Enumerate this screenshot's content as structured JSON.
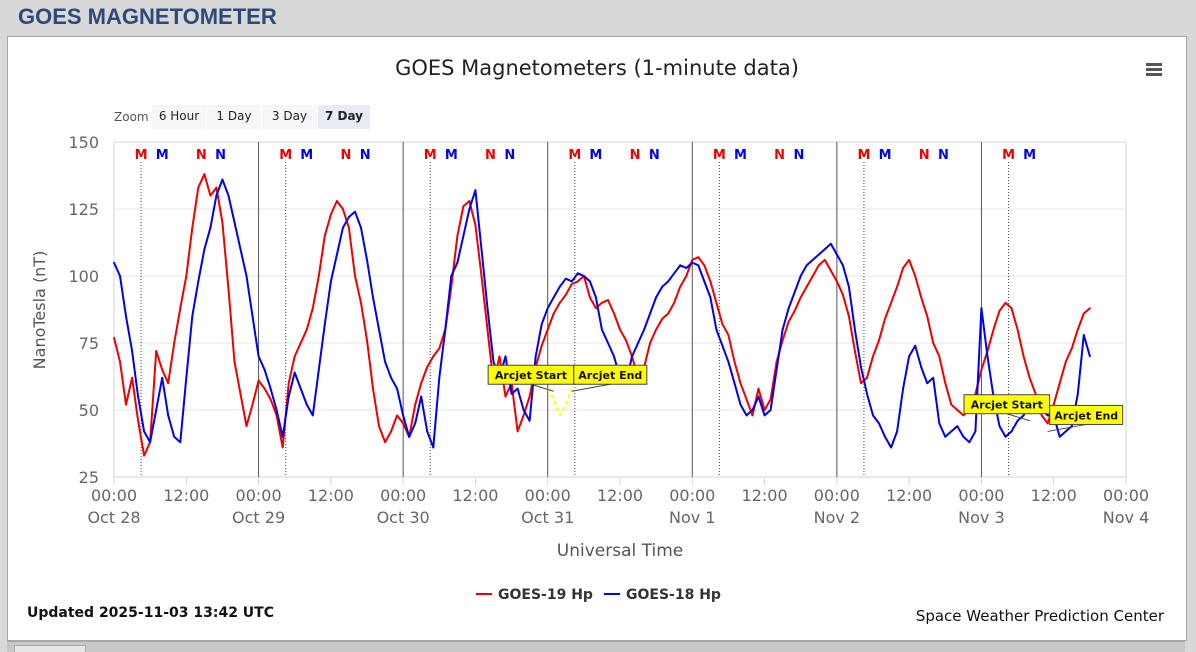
{
  "header": {
    "title": "GOES MAGNETOMETER"
  },
  "chart_data": {
    "type": "line",
    "title": "GOES Magnetometers (1-minute data)",
    "xlabel": "Universal Time",
    "ylabel": "NanoTesla (nT)",
    "ylim": [
      25,
      150
    ],
    "y_ticks": [
      25,
      50,
      75,
      100,
      125,
      150
    ],
    "x_range_hours": [
      0,
      168
    ],
    "x_ticks": [
      {
        "time": "00:00",
        "date": "Oct 28"
      },
      {
        "time": "12:00",
        "date": ""
      },
      {
        "time": "00:00",
        "date": "Oct 29"
      },
      {
        "time": "12:00",
        "date": ""
      },
      {
        "time": "00:00",
        "date": "Oct 30"
      },
      {
        "time": "12:00",
        "date": ""
      },
      {
        "time": "00:00",
        "date": "Oct 31"
      },
      {
        "time": "12:00",
        "date": ""
      },
      {
        "time": "00:00",
        "date": "Nov 1"
      },
      {
        "time": "12:00",
        "date": ""
      },
      {
        "time": "00:00",
        "date": "Nov 2"
      },
      {
        "time": "12:00",
        "date": ""
      },
      {
        "time": "00:00",
        "date": "Nov 3"
      },
      {
        "time": "12:00",
        "date": ""
      },
      {
        "time": "00:00",
        "date": "Nov 4"
      }
    ],
    "grid": "horizontal",
    "legend_position": "bottom-center",
    "series": [
      {
        "name": "GOES-19 Hp",
        "color": "#ee0000",
        "x": [
          0,
          1,
          2,
          3,
          4,
          5,
          6,
          7,
          8,
          9,
          10,
          11,
          12,
          13,
          14,
          15,
          16,
          17,
          18,
          19,
          20,
          21,
          22,
          23,
          24,
          25,
          26,
          27,
          28,
          29,
          30,
          31,
          32,
          33,
          34,
          35,
          36,
          37,
          38,
          39,
          40,
          41,
          42,
          43,
          44,
          45,
          46,
          47,
          48,
          49,
          50,
          51,
          52,
          53,
          54,
          55,
          56,
          57,
          58,
          59,
          60,
          61,
          62,
          63,
          64,
          65,
          66,
          67,
          68,
          69,
          70,
          71,
          72,
          73,
          74,
          75,
          76,
          77,
          78,
          79,
          80,
          81,
          82,
          83,
          84,
          85,
          86,
          87,
          88,
          89,
          90,
          91,
          92,
          93,
          94,
          95,
          96,
          97,
          98,
          99,
          100,
          101,
          102,
          103,
          104,
          105,
          106,
          107,
          108,
          109,
          110,
          111,
          112,
          113,
          114,
          115,
          116,
          117,
          118,
          119,
          120,
          121,
          122,
          123,
          124,
          125,
          126,
          127,
          128,
          129,
          130,
          131,
          132,
          133,
          134,
          135,
          136,
          137,
          138,
          139,
          140,
          141,
          142,
          143,
          144,
          145,
          146,
          147,
          148,
          149,
          150,
          151,
          152,
          153,
          154,
          155,
          156,
          157,
          158,
          159,
          160,
          161,
          162
        ],
        "values": [
          77,
          68,
          52,
          62,
          46,
          33,
          38,
          72,
          65,
          60,
          75,
          88,
          100,
          118,
          133,
          138,
          130,
          133,
          120,
          95,
          68,
          56,
          44,
          52,
          61,
          58,
          54,
          48,
          36,
          60,
          70,
          75,
          80,
          88,
          100,
          115,
          123,
          128,
          125,
          118,
          100,
          90,
          76,
          58,
          44,
          38,
          42,
          48,
          45,
          40,
          52,
          60,
          66,
          70,
          73,
          80,
          96,
          115,
          126,
          128,
          119,
          100,
          80,
          60,
          70,
          55,
          60,
          42,
          48,
          55,
          66,
          74,
          80,
          86,
          90,
          93,
          97,
          98,
          100,
          92,
          88,
          90,
          91,
          86,
          80,
          76,
          70,
          62,
          66,
          75,
          80,
          84,
          86,
          90,
          96,
          100,
          106,
          107,
          104,
          98,
          90,
          82,
          78,
          68,
          60,
          54,
          48,
          58,
          50,
          54,
          68,
          76,
          83,
          87,
          92,
          96,
          100,
          104,
          106,
          102,
          98,
          93,
          85,
          72,
          60,
          62,
          70,
          76,
          84,
          90,
          96,
          103,
          106,
          100,
          92,
          85,
          75,
          70,
          60,
          52,
          50,
          48,
          50,
          56,
          65,
          72,
          80,
          87,
          90,
          88,
          80,
          70,
          62,
          56,
          48,
          45,
          52,
          60,
          68,
          73,
          80,
          86,
          88
        ]
      },
      {
        "name": "GOES-18 Hp",
        "color": "#0000ee",
        "x": [
          0,
          1,
          2,
          3,
          4,
          5,
          6,
          7,
          8,
          9,
          10,
          11,
          12,
          13,
          14,
          15,
          16,
          17,
          18,
          19,
          20,
          21,
          22,
          23,
          24,
          25,
          26,
          27,
          28,
          29,
          30,
          31,
          32,
          33,
          34,
          35,
          36,
          37,
          38,
          39,
          40,
          41,
          42,
          43,
          44,
          45,
          46,
          47,
          48,
          49,
          50,
          51,
          52,
          53,
          54,
          55,
          56,
          57,
          58,
          59,
          60,
          61,
          62,
          63,
          64,
          65,
          66,
          67,
          68,
          69,
          70,
          71,
          72,
          73,
          74,
          75,
          76,
          77,
          78,
          79,
          80,
          81,
          82,
          83,
          84,
          85,
          86,
          87,
          88,
          89,
          90,
          91,
          92,
          93,
          94,
          95,
          96,
          97,
          98,
          99,
          100,
          101,
          102,
          103,
          104,
          105,
          106,
          107,
          108,
          109,
          110,
          111,
          112,
          113,
          114,
          115,
          116,
          117,
          118,
          119,
          120,
          121,
          122,
          123,
          124,
          125,
          126,
          127,
          128,
          129,
          130,
          131,
          132,
          133,
          134,
          135,
          136,
          137,
          138,
          139,
          140,
          141,
          142,
          143,
          144,
          145,
          146,
          147,
          148,
          149,
          150,
          151,
          152,
          153,
          154,
          155,
          156,
          157,
          158,
          159,
          160,
          161,
          162
        ],
        "values": [
          105,
          100,
          85,
          72,
          55,
          42,
          38,
          50,
          62,
          48,
          40,
          38,
          62,
          85,
          98,
          110,
          118,
          130,
          136,
          130,
          120,
          110,
          100,
          85,
          70,
          65,
          58,
          50,
          40,
          55,
          64,
          58,
          52,
          48,
          65,
          82,
          98,
          108,
          118,
          122,
          124,
          118,
          106,
          92,
          80,
          68,
          62,
          58,
          48,
          40,
          45,
          55,
          42,
          36,
          62,
          80,
          100,
          105,
          115,
          125,
          132,
          110,
          88,
          68,
          62,
          70,
          56,
          58,
          50,
          46,
          70,
          82,
          88,
          92,
          96,
          99,
          98,
          101,
          100,
          98,
          92,
          80,
          75,
          70,
          62,
          60,
          70,
          75,
          80,
          86,
          92,
          96,
          98,
          101,
          104,
          103,
          105,
          104,
          98,
          92,
          80,
          74,
          68,
          60,
          52,
          48,
          50,
          55,
          48,
          50,
          65,
          80,
          88,
          94,
          100,
          104,
          106,
          108,
          110,
          112,
          108,
          104,
          96,
          80,
          66,
          56,
          48,
          45,
          40,
          36,
          42,
          58,
          70,
          74,
          66,
          60,
          62,
          45,
          40,
          42,
          44,
          40,
          38,
          42,
          88,
          70,
          55,
          44,
          40,
          42,
          46,
          48,
          52,
          55,
          50,
          48,
          48,
          40,
          42,
          44,
          56,
          78,
          70
        ]
      },
      {
        "name": "Arcjet",
        "color": "#ffff00",
        "x": [
          72,
          73,
          74,
          75,
          76
        ],
        "values": [
          58,
          54,
          48,
          52,
          58
        ]
      }
    ],
    "markers": [
      {
        "label": "M",
        "color": "#ee0000",
        "x": 4.5
      },
      {
        "label": "M",
        "color": "#0000ee",
        "x": 8
      },
      {
        "label": "N",
        "color": "#ee0000",
        "x": 14.5
      },
      {
        "label": "N",
        "color": "#0000ee",
        "x": 17.7
      },
      {
        "label": "M",
        "color": "#ee0000",
        "x": 28.5
      },
      {
        "label": "M",
        "color": "#0000ee",
        "x": 32
      },
      {
        "label": "N",
        "color": "#ee0000",
        "x": 38.5
      },
      {
        "label": "N",
        "color": "#0000ee",
        "x": 41.7
      },
      {
        "label": "M",
        "color": "#ee0000",
        "x": 52.5
      },
      {
        "label": "M",
        "color": "#0000ee",
        "x": 56
      },
      {
        "label": "N",
        "color": "#ee0000",
        "x": 62.5
      },
      {
        "label": "N",
        "color": "#0000ee",
        "x": 65.7
      },
      {
        "label": "M",
        "color": "#ee0000",
        "x": 76.5
      },
      {
        "label": "M",
        "color": "#0000ee",
        "x": 80
      },
      {
        "label": "N",
        "color": "#ee0000",
        "x": 86.5
      },
      {
        "label": "N",
        "color": "#0000ee",
        "x": 89.7
      },
      {
        "label": "M",
        "color": "#ee0000",
        "x": 100.5
      },
      {
        "label": "M",
        "color": "#0000ee",
        "x": 104
      },
      {
        "label": "N",
        "color": "#ee0000",
        "x": 110.5
      },
      {
        "label": "N",
        "color": "#0000ee",
        "x": 113.7
      },
      {
        "label": "M",
        "color": "#ee0000",
        "x": 124.5
      },
      {
        "label": "M",
        "color": "#0000ee",
        "x": 128
      },
      {
        "label": "N",
        "color": "#ee0000",
        "x": 134.5
      },
      {
        "label": "N",
        "color": "#0000ee",
        "x": 137.7
      },
      {
        "label": "M",
        "color": "#ee0000",
        "x": 148.5
      },
      {
        "label": "M",
        "color": "#0000ee",
        "x": 152
      }
    ],
    "annotations": [
      {
        "text": "Arcjet Start",
        "x": 73,
        "y": 57
      },
      {
        "text": "Arcjet End",
        "x": 76,
        "y": 57
      },
      {
        "text": "Arcjet Start",
        "x": 152,
        "y": 46
      },
      {
        "text": "Arcjet End",
        "x": 155,
        "y": 42
      }
    ],
    "zoom": {
      "label": "Zoom",
      "buttons": [
        "6 Hour",
        "1 Day",
        "3 Day",
        "7 Day"
      ],
      "selected": "7 Day"
    },
    "footer_left": "Updated 2025-11-03 13:42 UTC",
    "footer_right": "Space Weather Prediction Center"
  }
}
